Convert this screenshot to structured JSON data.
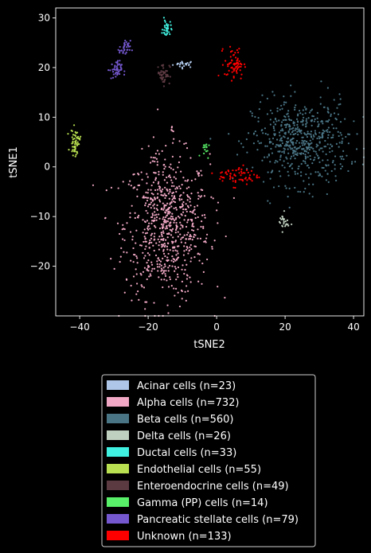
{
  "chart_data": {
    "type": "scatter",
    "xlabel": "tSNE2",
    "ylabel": "tSNE1",
    "xlim": [
      -47,
      43
    ],
    "ylim": [
      -30,
      32
    ],
    "xticks": [
      -40,
      -20,
      0,
      20,
      40
    ],
    "yticks": [
      -20,
      -10,
      0,
      10,
      20,
      30
    ],
    "grid": false,
    "legend_position": "bottom-outside",
    "series": [
      {
        "name": "Acinar cells (n=23)",
        "color": "#aec7e8",
        "clusters": [
          {
            "center": [
              -9.5,
              20.7
            ],
            "spread": [
              1.6,
              0.35
            ],
            "n": 23
          }
        ]
      },
      {
        "name": "Alpha cells (n=732)",
        "color": "#f0a8c4",
        "clusters": [
          {
            "center": [
              -14.5,
              -12.0
            ],
            "spread": [
              6.2,
              7.2
            ],
            "n": 720
          },
          {
            "center": [
              -13.0,
              7.5
            ],
            "spread": [
              0.3,
              0.6
            ],
            "n": 6
          },
          {
            "center": [
              -18.5,
              1.5
            ],
            "spread": [
              1.2,
              0.5
            ],
            "n": 6
          }
        ]
      },
      {
        "name": "Beta cells (n=560)",
        "color": "#4a7585",
        "clusters": [
          {
            "center": [
              24.5,
              5.0
            ],
            "spread": [
              7.0,
              4.2
            ],
            "n": 560
          }
        ]
      },
      {
        "name": "Delta cells (n=26)",
        "color": "#c0d0c0",
        "clusters": [
          {
            "center": [
              19.5,
              -11.2
            ],
            "spread": [
              0.8,
              0.9
            ],
            "n": 26
          }
        ]
      },
      {
        "name": "Ductal cells (n=33)",
        "color": "#40f0e0",
        "clusters": [
          {
            "center": [
              -14.5,
              27.8
            ],
            "spread": [
              0.6,
              0.9
            ],
            "n": 33
          }
        ]
      },
      {
        "name": "Endothelial cells (n=55)",
        "color": "#b8e050",
        "clusters": [
          {
            "center": [
              -41.3,
              5.0
            ],
            "spread": [
              0.7,
              1.3
            ],
            "n": 55
          }
        ]
      },
      {
        "name": "Enteroendocrine cells (n=49)",
        "color": "#5c3a42",
        "clusters": [
          {
            "center": [
              -15.5,
              18.8
            ],
            "spread": [
              0.9,
              1.1
            ],
            "n": 49
          }
        ]
      },
      {
        "name": "Gamma (PP) cells (n=14)",
        "color": "#58f068",
        "clusters": [
          {
            "center": [
              -3.5,
              3.5
            ],
            "spread": [
              0.6,
              0.8
            ],
            "n": 14
          }
        ]
      },
      {
        "name": "Pancreatic stellate cells (n=79)",
        "color": "#7558d0",
        "clusters": [
          {
            "center": [
              -29.5,
              19.5
            ],
            "spread": [
              0.9,
              0.9
            ],
            "n": 45
          },
          {
            "center": [
              -26.8,
              23.8
            ],
            "spread": [
              0.8,
              0.8
            ],
            "n": 34
          }
        ]
      },
      {
        "name": "Unknown (n=133)",
        "color": "#ff0000",
        "clusters": [
          {
            "center": [
              5.2,
              20.8
            ],
            "spread": [
              1.4,
              1.6
            ],
            "n": 70
          },
          {
            "center": [
              6.5,
              -1.8
            ],
            "spread": [
              3.0,
              1.0
            ],
            "n": 63
          }
        ]
      }
    ]
  }
}
